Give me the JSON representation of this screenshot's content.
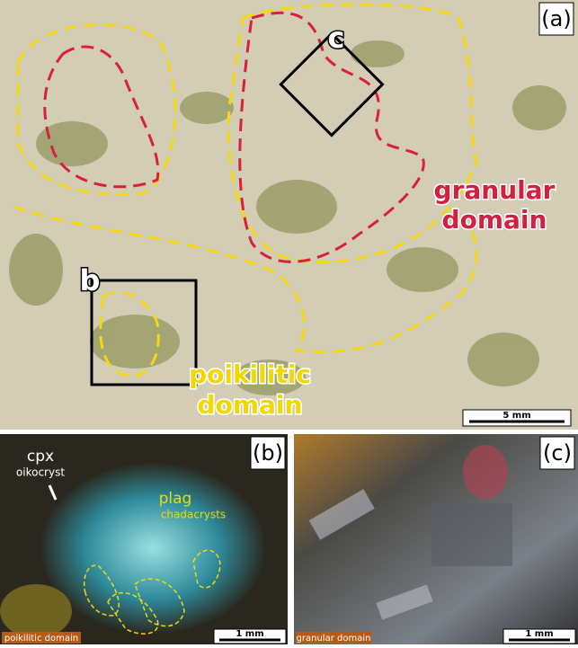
{
  "panel_a": {
    "label": "(a)",
    "inset_c": "c",
    "inset_b": "b",
    "granular_domain": [
      "granular",
      "domain"
    ],
    "poikilitic_domain": [
      "poikilitic",
      "domain"
    ],
    "scale_bar": "5 mm"
  },
  "panel_b": {
    "label": "(b)",
    "cpx": "cpx",
    "oikocryst": "oikocryst",
    "plag": "plag",
    "chadacrysts": "chadacrysts",
    "domain_tag": "poikilitic domain",
    "scale_bar": "1 mm"
  },
  "panel_c": {
    "label": "(c)",
    "domain_tag": "granular domain",
    "scale_bar": "1 mm"
  }
}
